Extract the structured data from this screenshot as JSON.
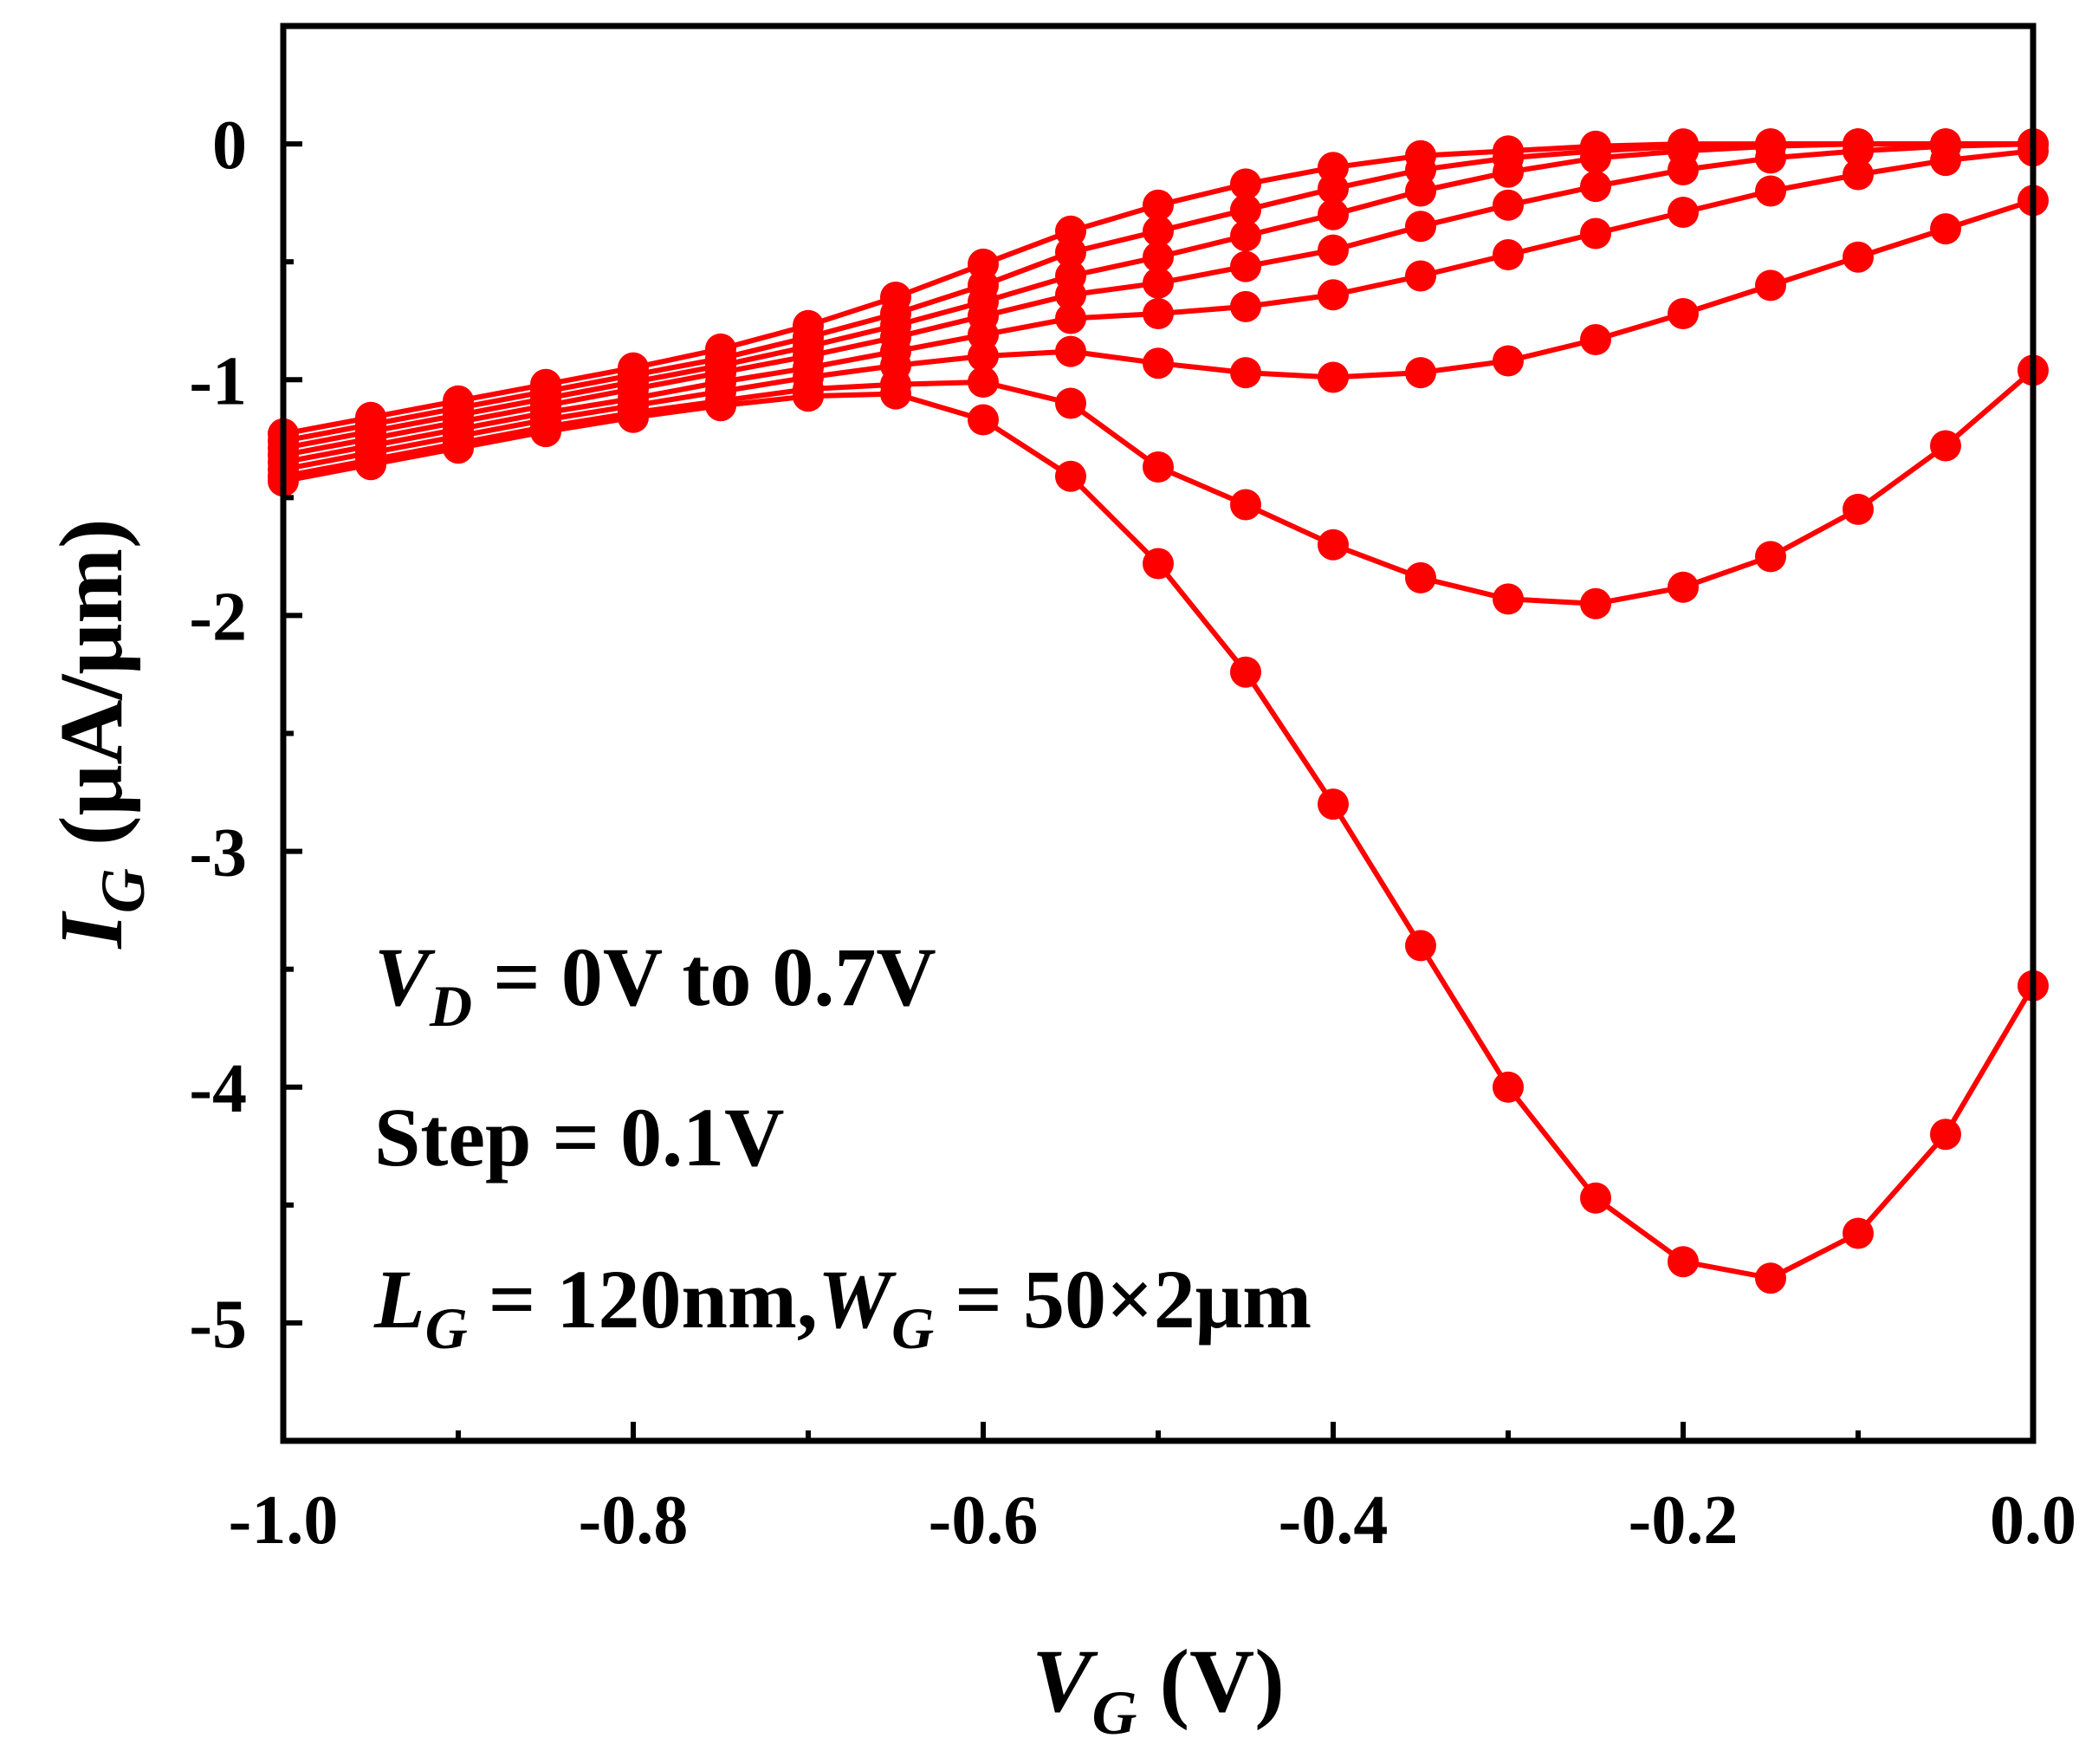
{
  "chart_data": {
    "type": "line",
    "xlim": [
      -1.0,
      0.0
    ],
    "ylim": [
      -5.5,
      0.5
    ],
    "xticks": [
      "-1.0",
      "-0.8",
      "-0.6",
      "-0.4",
      "-0.2",
      "0.0"
    ],
    "yticks": [
      "0",
      "-1",
      "-2",
      "-3",
      "-4",
      "-5"
    ],
    "xlabel": {
      "main": "V",
      "sub": "G",
      "unit": " (V)"
    },
    "ylabel": {
      "main": "I",
      "sub": "G",
      "unit": " (μA/μm)"
    },
    "annotations": [
      {
        "parts": [
          {
            "t": "V",
            "i": true
          },
          {
            "t": "D",
            "i": true,
            "sub": true
          },
          {
            "t": " = 0V to 0.7V"
          }
        ]
      },
      {
        "parts": [
          {
            "t": "Step = 0.1V"
          }
        ]
      },
      {
        "parts": [
          {
            "t": "L",
            "i": true
          },
          {
            "t": "G",
            "i": true,
            "sub": true
          },
          {
            "t": " = 120nm,"
          },
          {
            "t": "W",
            "i": true
          },
          {
            "t": "G",
            "i": true,
            "sub": true
          },
          {
            "t": " = 50×2μm"
          }
        ]
      }
    ],
    "grid": false,
    "legend": "none",
    "marker": "circle",
    "color": "#ff0000",
    "x": [
      -1.0,
      -0.95,
      -0.9,
      -0.85,
      -0.8,
      -0.75,
      -0.7,
      -0.65,
      -0.6,
      -0.55,
      -0.5,
      -0.45,
      -0.4,
      -0.35,
      -0.3,
      -0.25,
      -0.2,
      -0.15,
      -0.1,
      -0.05,
      0.0
    ],
    "series": [
      {
        "values": [
          -1.43,
          -1.36,
          -1.29,
          -1.22,
          -1.16,
          -1.11,
          -1.07,
          -1.06,
          -1.17,
          -1.41,
          -1.78,
          -2.24,
          -2.8,
          -3.4,
          -4.0,
          -4.47,
          -4.74,
          -4.81,
          -4.62,
          -4.2,
          -3.57
        ]
      },
      {
        "values": [
          -1.41,
          -1.34,
          -1.27,
          -1.2,
          -1.14,
          -1.09,
          -1.04,
          -1.02,
          -1.01,
          -1.1,
          -1.37,
          -1.53,
          -1.7,
          -1.84,
          -1.93,
          -1.95,
          -1.88,
          -1.75,
          -1.55,
          -1.28,
          -0.96
        ]
      },
      {
        "values": [
          -1.38,
          -1.31,
          -1.24,
          -1.17,
          -1.11,
          -1.05,
          -0.99,
          -0.94,
          -0.9,
          -0.88,
          -0.93,
          -0.97,
          -0.99,
          -0.97,
          -0.92,
          -0.83,
          -0.72,
          -0.6,
          -0.48,
          -0.36,
          -0.24
        ]
      },
      {
        "values": [
          -1.35,
          -1.28,
          -1.21,
          -1.14,
          -1.08,
          -1.01,
          -0.95,
          -0.88,
          -0.81,
          -0.74,
          -0.72,
          -0.69,
          -0.64,
          -0.56,
          -0.47,
          -0.38,
          -0.29,
          -0.2,
          -0.13,
          -0.07,
          -0.03
        ]
      },
      {
        "values": [
          -1.32,
          -1.25,
          -1.18,
          -1.11,
          -1.04,
          -0.97,
          -0.9,
          -0.82,
          -0.73,
          -0.64,
          -0.59,
          -0.52,
          -0.45,
          -0.35,
          -0.26,
          -0.18,
          -0.11,
          -0.06,
          -0.03,
          -0.01,
          0.0
        ]
      },
      {
        "values": [
          -1.29,
          -1.22,
          -1.15,
          -1.08,
          -1.01,
          -0.94,
          -0.86,
          -0.77,
          -0.67,
          -0.56,
          -0.48,
          -0.39,
          -0.3,
          -0.2,
          -0.12,
          -0.06,
          -0.03,
          -0.01,
          0.0,
          0.0,
          0.0
        ]
      },
      {
        "values": [
          -1.26,
          -1.19,
          -1.12,
          -1.05,
          -0.98,
          -0.91,
          -0.82,
          -0.72,
          -0.6,
          -0.46,
          -0.37,
          -0.28,
          -0.19,
          -0.11,
          -0.06,
          -0.03,
          -0.01,
          0.0,
          0.0,
          0.0,
          0.0
        ]
      },
      {
        "values": [
          -1.23,
          -1.16,
          -1.09,
          -1.02,
          -0.95,
          -0.87,
          -0.77,
          -0.65,
          -0.51,
          -0.37,
          -0.26,
          -0.17,
          -0.1,
          -0.05,
          -0.03,
          -0.01,
          0.0,
          0.0,
          0.0,
          0.0,
          0.0
        ]
      }
    ]
  }
}
